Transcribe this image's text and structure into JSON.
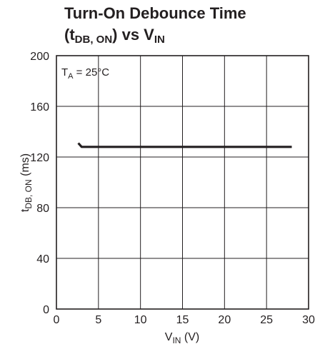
{
  "chart_data": {
    "type": "line",
    "title_line1": "Turn-On Debounce Time",
    "title_line2_prefix": "(t",
    "title_line2_sub": "DB, ON",
    "title_line2_mid": ") vs V",
    "title_line2_sub2": "IN",
    "annotation_base": "T",
    "annotation_sub": "A",
    "annotation_rest": " = 25°C",
    "xlabel_base": "V",
    "xlabel_sub": "IN",
    "xlabel_rest": " (V)",
    "ylabel_base": "t",
    "ylabel_sub": "DB, ON",
    "ylabel_rest": " (ms)",
    "xlim": [
      0,
      30
    ],
    "ylim": [
      0,
      200
    ],
    "xticks": [
      "0",
      "5",
      "10",
      "15",
      "20",
      "25",
      "30"
    ],
    "yticks": [
      "0",
      "40",
      "80",
      "120",
      "160",
      "200"
    ],
    "grid": true,
    "series": [
      {
        "color": "#231f20",
        "x": [
          2.6,
          3.0,
          5,
          10,
          15,
          20,
          25,
          28
        ],
        "y": [
          131,
          128,
          128,
          128,
          128,
          128,
          128,
          128
        ]
      }
    ]
  }
}
